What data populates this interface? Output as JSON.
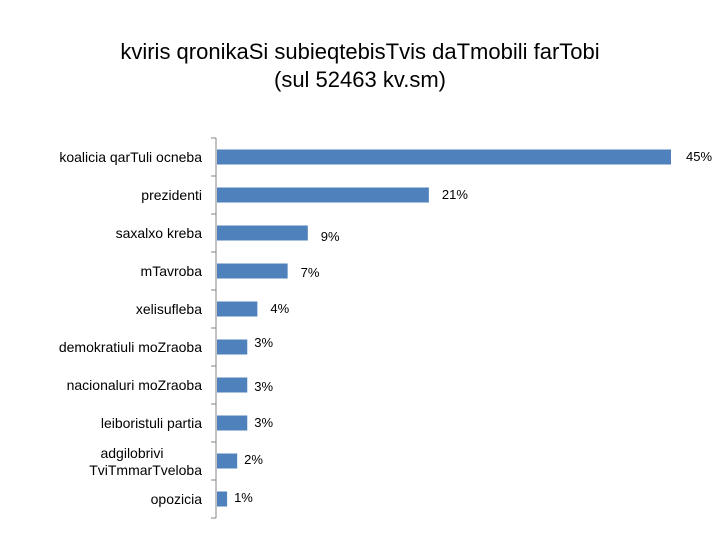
{
  "chart_data": {
    "type": "bar",
    "orientation": "horizontal",
    "title": "kviris qronikaSi subieqtebisTvis daTmobili farTobi",
    "subtitle": "(sul 52463 kv.sm)",
    "categories": [
      "koalicia qarTuli ocneba",
      "prezidenti",
      "saxalxo kreba",
      "mTavroba",
      "xelisufleba",
      "demokratiuli moZraoba",
      "nacionaluri moZraoba",
      "leiboristuli partia",
      "adgilobrivi TviTmmarTveloba",
      "opozicia"
    ],
    "values": [
      45,
      21,
      9,
      7,
      4,
      3,
      3,
      3,
      2,
      1
    ],
    "value_labels": [
      "45%",
      "21%",
      "9%",
      "7%",
      "4%",
      "3%",
      "3%",
      "3%",
      "2%",
      "1%"
    ],
    "unit": "%",
    "xlim": [
      0,
      45
    ],
    "grid": false,
    "legend": "none",
    "bar_color": "#4F81BD",
    "axis_color": "#868686"
  }
}
